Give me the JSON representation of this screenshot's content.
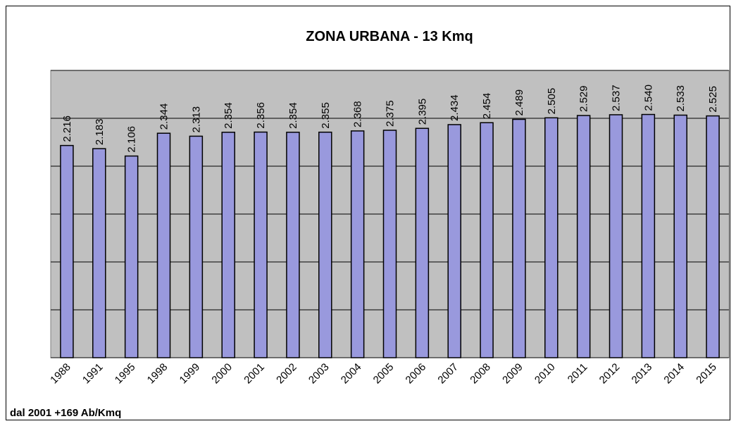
{
  "chart_data": {
    "type": "bar",
    "title": "ZONA URBANA - 13 Kmq",
    "categories": [
      "1988",
      "1991",
      "1995",
      "1998",
      "1999",
      "2000",
      "2001",
      "2002",
      "2003",
      "2004",
      "2005",
      "2006",
      "2007",
      "2008",
      "2009",
      "2010",
      "2011",
      "2012",
      "2013",
      "2014",
      "2015"
    ],
    "values": [
      2216,
      2183,
      2106,
      2344,
      2313,
      2354,
      2356,
      2354,
      2355,
      2368,
      2375,
      2395,
      2434,
      2454,
      2489,
      2505,
      2529,
      2537,
      2540,
      2533,
      2525
    ],
    "value_labels": [
      "2.216",
      "2.183",
      "2.106",
      "2.344",
      "2.313",
      "2.354",
      "2.356",
      "2.354",
      "2.355",
      "2.368",
      "2.375",
      "2.395",
      "2.434",
      "2.454",
      "2.489",
      "2.505",
      "2.529",
      "2.537",
      "2.540",
      "2.533",
      "2.525"
    ],
    "color": "#9999dd",
    "ylim": [
      0,
      3000
    ],
    "yticks": [
      0,
      500,
      1000,
      1500,
      2000,
      2500,
      3000
    ],
    "grid": true,
    "annotation": "dal 2001 +169 Ab/Kmq"
  }
}
